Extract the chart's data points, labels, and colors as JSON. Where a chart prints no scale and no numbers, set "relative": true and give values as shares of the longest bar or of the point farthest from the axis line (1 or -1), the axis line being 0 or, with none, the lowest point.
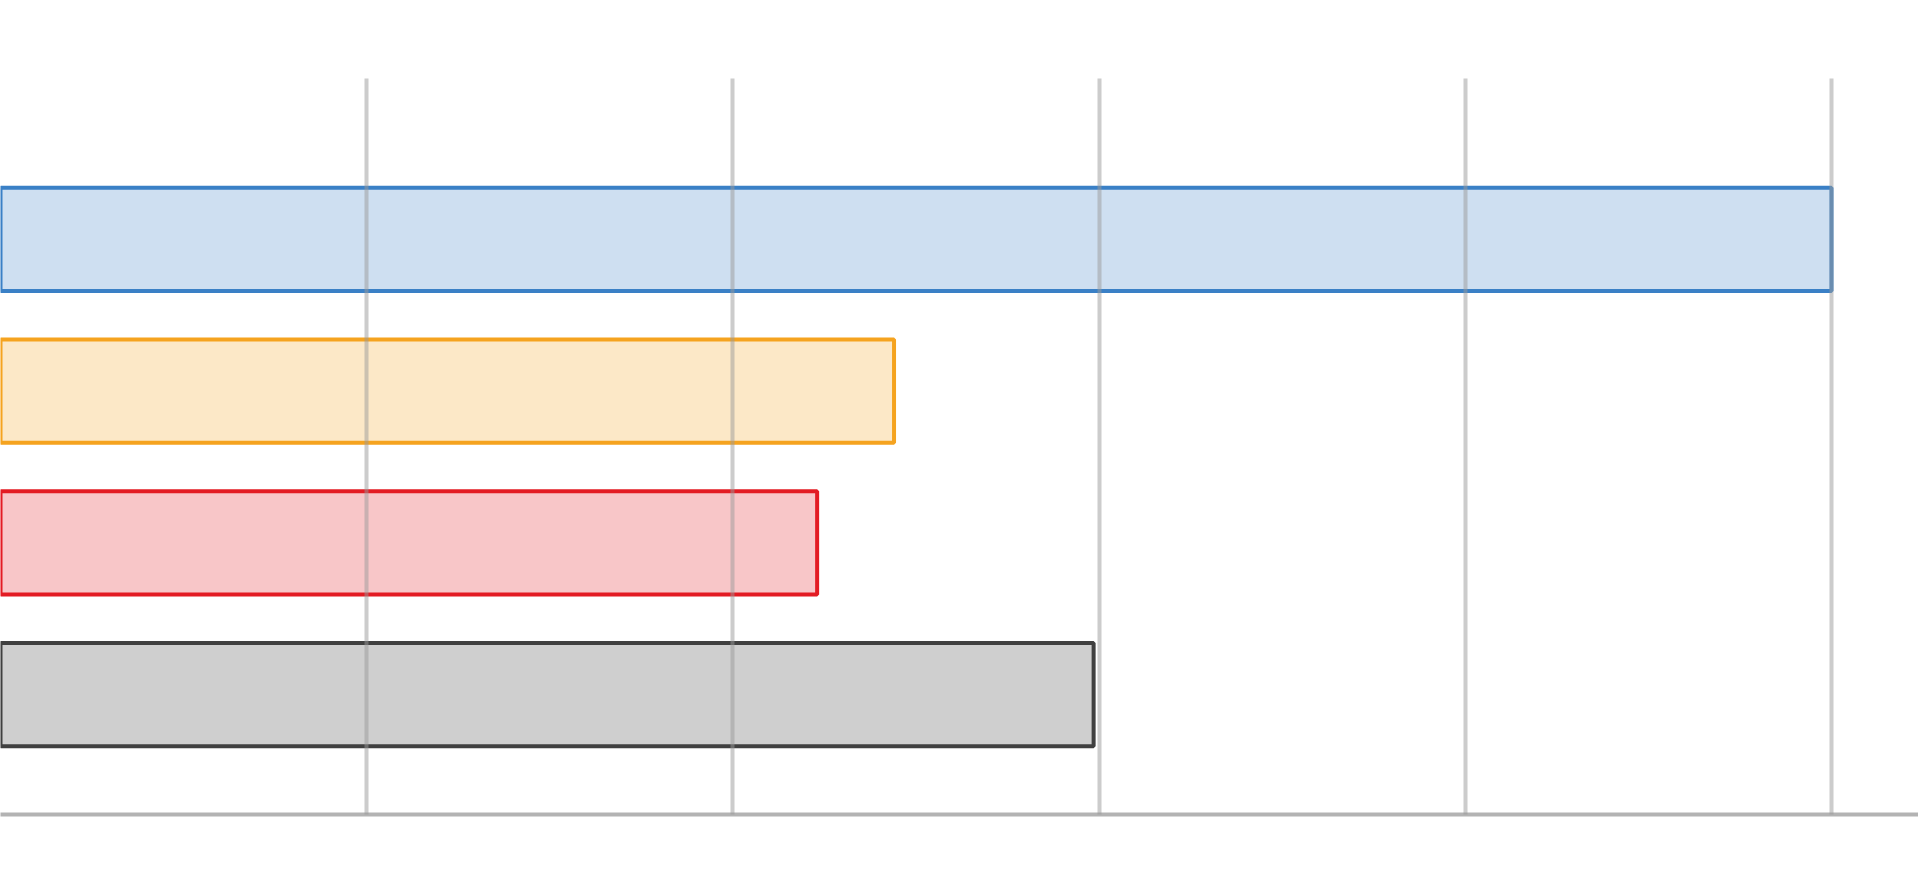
{
  "chart_data": {
    "type": "bar",
    "orientation": "horizontal",
    "relative": true,
    "categories": [
      null,
      null,
      null,
      null
    ],
    "values": [
      1,
      0.488,
      0.446,
      0.597
    ],
    "colors": [
      "#3a80c6",
      "#f5a31f",
      "#e31b23",
      "#404040"
    ],
    "grid": "x"
  }
}
